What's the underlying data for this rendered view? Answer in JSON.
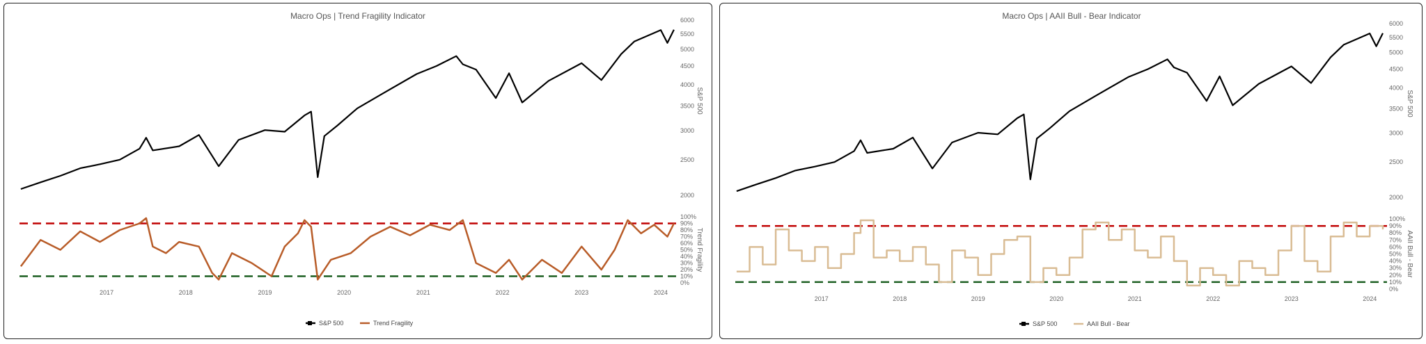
{
  "chart_data": [
    {
      "type": "line",
      "title": "Macro Ops | Trend Fragility Indicator",
      "price_axis": {
        "label": "S&P 500",
        "scale": "log",
        "ticks": [
          "2000",
          "2500",
          "3000",
          "3500",
          "4000",
          "4500",
          "5000",
          "5500",
          "6000"
        ]
      },
      "indicator_axis": {
        "label": "Trend Fragility",
        "ticks": [
          "0%",
          "10%",
          "20%",
          "30%",
          "40%",
          "50%",
          "60%",
          "70%",
          "80%",
          "90%",
          "100%"
        ],
        "ylim": [
          0,
          100
        ]
      },
      "x_ticks": [
        "2017",
        "2018",
        "2019",
        "2020",
        "2021",
        "2022",
        "2023",
        "2024"
      ],
      "reference_lines": [
        {
          "value": 90,
          "color": "#c00000"
        },
        {
          "value": 10,
          "color": "#1b5e20"
        }
      ],
      "series": [
        {
          "name": "S&P 500",
          "color": "#000000",
          "x": [
            "2016-06",
            "2016-09",
            "2016-12",
            "2017-03",
            "2017-06",
            "2017-09",
            "2017-12",
            "2018-01",
            "2018-02",
            "2018-06",
            "2018-09",
            "2018-12",
            "2019-03",
            "2019-07",
            "2019-10",
            "2020-01",
            "2020-02",
            "2020-03",
            "2020-04",
            "2020-06",
            "2020-09",
            "2021-01",
            "2021-06",
            "2021-09",
            "2021-12",
            "2022-01",
            "2022-03",
            "2022-06",
            "2022-08",
            "2022-10",
            "2023-02",
            "2023-07",
            "2023-10",
            "2024-01",
            "2024-03",
            "2024-07",
            "2024-08",
            "2024-09"
          ],
          "y": [
            2080,
            2170,
            2260,
            2370,
            2430,
            2500,
            2680,
            2870,
            2650,
            2720,
            2920,
            2400,
            2830,
            3010,
            2980,
            3300,
            3380,
            2240,
            2900,
            3100,
            3450,
            3800,
            4280,
            4500,
            4790,
            4550,
            4400,
            3680,
            4300,
            3580,
            4100,
            4580,
            4120,
            4850,
            5250,
            5640,
            5200,
            5650
          ]
        },
        {
          "name": "Trend Fragility",
          "color": "#b85c28",
          "x": [
            "2016-06",
            "2016-09",
            "2016-12",
            "2017-03",
            "2017-06",
            "2017-09",
            "2017-12",
            "2018-01",
            "2018-02",
            "2018-04",
            "2018-06",
            "2018-09",
            "2018-11",
            "2018-12",
            "2019-02",
            "2019-05",
            "2019-08",
            "2019-10",
            "2019-12",
            "2020-01",
            "2020-02",
            "2020-03",
            "2020-05",
            "2020-08",
            "2020-11",
            "2021-02",
            "2021-05",
            "2021-08",
            "2021-11",
            "2022-01",
            "2022-03",
            "2022-06",
            "2022-08",
            "2022-10",
            "2023-01",
            "2023-04",
            "2023-07",
            "2023-10",
            "2023-12",
            "2024-02",
            "2024-04",
            "2024-06",
            "2024-08",
            "2024-09"
          ],
          "y": [
            25,
            65,
            50,
            78,
            62,
            80,
            90,
            98,
            55,
            45,
            62,
            55,
            15,
            5,
            45,
            30,
            10,
            55,
            75,
            95,
            85,
            5,
            35,
            45,
            70,
            85,
            72,
            88,
            80,
            95,
            30,
            15,
            35,
            5,
            35,
            15,
            55,
            20,
            50,
            95,
            75,
            88,
            70,
            90
          ]
        }
      ],
      "legend": {
        "placement": "bottom-center",
        "items": [
          "S&P 500",
          "Trend Fragility"
        ]
      }
    },
    {
      "type": "line",
      "title": "Macro Ops | AAII Bull - Bear Indicator",
      "price_axis": {
        "label": "S&P 500",
        "scale": "log",
        "ticks": [
          "2000",
          "2500",
          "3000",
          "3500",
          "4000",
          "4500",
          "5000",
          "5500",
          "6000"
        ]
      },
      "indicator_axis": {
        "label": "AAII Bull - Bear",
        "ticks": [
          "0%",
          "10%",
          "20%",
          "30%",
          "40%",
          "50%",
          "60%",
          "70%",
          "80%",
          "90%",
          "100%"
        ],
        "ylim": [
          0,
          100
        ]
      },
      "x_ticks": [
        "2017",
        "2018",
        "2019",
        "2020",
        "2021",
        "2022",
        "2023",
        "2024"
      ],
      "reference_lines": [
        {
          "value": 90,
          "color": "#c00000"
        },
        {
          "value": 10,
          "color": "#1b5e20"
        }
      ],
      "series": [
        {
          "name": "S&P 500",
          "color": "#000000",
          "x": [
            "2016-06",
            "2016-09",
            "2016-12",
            "2017-03",
            "2017-06",
            "2017-09",
            "2017-12",
            "2018-01",
            "2018-02",
            "2018-06",
            "2018-09",
            "2018-12",
            "2019-03",
            "2019-07",
            "2019-10",
            "2020-01",
            "2020-02",
            "2020-03",
            "2020-04",
            "2020-06",
            "2020-09",
            "2021-01",
            "2021-06",
            "2021-09",
            "2021-12",
            "2022-01",
            "2022-03",
            "2022-06",
            "2022-08",
            "2022-10",
            "2023-02",
            "2023-07",
            "2023-10",
            "2024-01",
            "2024-03",
            "2024-07",
            "2024-08",
            "2024-09"
          ],
          "y": [
            2080,
            2170,
            2260,
            2370,
            2430,
            2500,
            2680,
            2870,
            2650,
            2720,
            2920,
            2400,
            2830,
            3010,
            2980,
            3300,
            3380,
            2240,
            2900,
            3100,
            3450,
            3800,
            4280,
            4500,
            4790,
            4550,
            4400,
            3680,
            4300,
            3580,
            4100,
            4580,
            4120,
            4850,
            5250,
            5640,
            5200,
            5650
          ]
        },
        {
          "name": "AAII Bull - Bear",
          "color": "#d9bc94",
          "x": [
            "2016-06",
            "2016-08",
            "2016-10",
            "2016-12",
            "2017-02",
            "2017-04",
            "2017-06",
            "2017-08",
            "2017-10",
            "2017-12",
            "2018-01",
            "2018-03",
            "2018-05",
            "2018-07",
            "2018-09",
            "2018-11",
            "2019-01",
            "2019-03",
            "2019-05",
            "2019-07",
            "2019-09",
            "2019-11",
            "2020-01",
            "2020-03",
            "2020-05",
            "2020-07",
            "2020-09",
            "2020-11",
            "2021-01",
            "2021-03",
            "2021-05",
            "2021-07",
            "2021-09",
            "2021-11",
            "2022-01",
            "2022-03",
            "2022-05",
            "2022-07",
            "2022-09",
            "2022-11",
            "2023-01",
            "2023-03",
            "2023-05",
            "2023-07",
            "2023-09",
            "2023-11",
            "2024-01",
            "2024-03",
            "2024-05",
            "2024-07",
            "2024-09"
          ],
          "y": [
            25,
            60,
            35,
            85,
            55,
            40,
            60,
            30,
            50,
            80,
            98,
            45,
            55,
            40,
            60,
            35,
            10,
            55,
            45,
            20,
            50,
            70,
            75,
            10,
            30,
            20,
            45,
            85,
            95,
            70,
            85,
            55,
            45,
            75,
            40,
            5,
            30,
            20,
            5,
            40,
            30,
            20,
            55,
            90,
            40,
            25,
            75,
            95,
            75,
            90,
            85
          ]
        }
      ],
      "legend": {
        "placement": "bottom-center",
        "items": [
          "S&P 500",
          "AAII Bull - Bear"
        ]
      }
    }
  ]
}
